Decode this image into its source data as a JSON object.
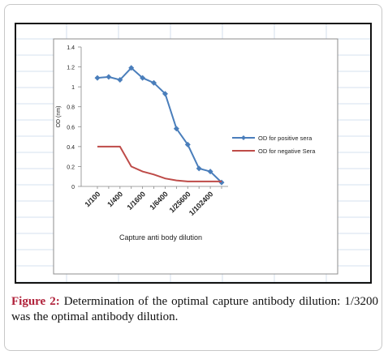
{
  "figure": {
    "caption_label": "Figure 2:",
    "caption_text": " Determination of the optimal capture antibody dilution: 1/3200 was the optimal antibody dilution."
  },
  "chart_data": {
    "type": "line",
    "title": "",
    "xlabel": "Capture anti body dilution",
    "ylabel": "OD (nm)",
    "ylim": [
      0,
      1.4
    ],
    "yticks": [
      0,
      0.2,
      0.4,
      0.6,
      0.8,
      1,
      1.2,
      1.4
    ],
    "categories": [
      "1/100",
      "",
      "1/400",
      "",
      "1/1600",
      "",
      "1/6400",
      "",
      "1/25600",
      "",
      "1/102400",
      ""
    ],
    "category_labels": [
      "1/100",
      "1/400",
      "1/1600",
      "1/6400",
      "1/25600",
      "1/102400"
    ],
    "legend_position": "right",
    "series": [
      {
        "name": "OD for positive sera",
        "color": "#4a7ebb",
        "marker": "diamond",
        "values": [
          1.09,
          1.1,
          1.07,
          1.19,
          1.09,
          1.04,
          0.93,
          0.58,
          0.42,
          0.18,
          0.15,
          0.04
        ]
      },
      {
        "name": "OD for negative Sera",
        "color": "#be4b48",
        "marker": "none",
        "values": [
          0.4,
          0.4,
          0.4,
          0.2,
          0.15,
          0.12,
          0.08,
          0.06,
          0.05,
          0.05,
          0.05,
          0.05
        ]
      }
    ]
  }
}
